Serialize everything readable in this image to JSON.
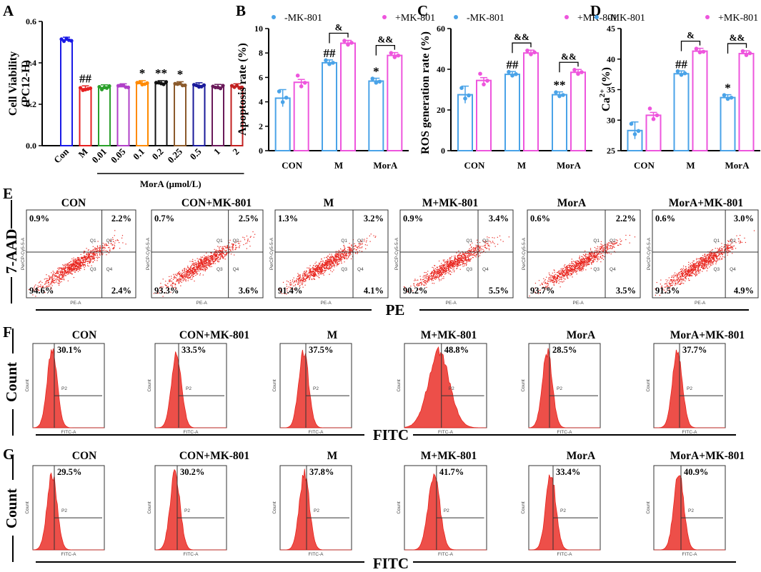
{
  "chart_data": [
    {
      "panel": "A",
      "type": "bar",
      "ylabel": "Cell Viability (PC12-H)",
      "ylim": [
        0,
        0.6
      ],
      "yticks": [
        "0.0",
        "0.2",
        "0.4",
        "0.6"
      ],
      "categories": [
        "Con",
        "M",
        "0.01",
        "0.05",
        "0.1",
        "0.2",
        "0.25",
        "0.5",
        "1",
        "2"
      ],
      "values": [
        0.51,
        0.275,
        0.28,
        0.285,
        0.3,
        0.3,
        0.295,
        0.29,
        0.282,
        0.285
      ],
      "colors": [
        "#1a1ae6",
        "#e62020",
        "#2aa02a",
        "#b040c8",
        "#ff8a00",
        "#111111",
        "#8b5a2b",
        "#1a1a9a",
        "#6a1a5a",
        "#c22020"
      ],
      "annotations": [
        "",
        "##",
        "",
        "",
        "*",
        "**",
        "*",
        "",
        "",
        ""
      ],
      "xlabel": "MorA (μmol/L)"
    },
    {
      "panel": "B",
      "type": "bar",
      "ylabel": "Apoptosis rate (%)",
      "ylim": [
        0,
        10
      ],
      "yticks": [
        "0",
        "2",
        "4",
        "6",
        "8",
        "10"
      ],
      "categories": [
        "CON",
        "M",
        "MorA"
      ],
      "series": [
        {
          "name": "-MK-801",
          "values": [
            4.3,
            7.2,
            5.7
          ],
          "annotations": [
            "",
            "##",
            "*"
          ]
        },
        {
          "name": "+MK-801",
          "values": [
            5.6,
            8.8,
            7.8
          ],
          "annotations": [
            "",
            "",
            ""
          ]
        }
      ],
      "brackets": [
        {
          "category": "M",
          "label": "&"
        },
        {
          "category": "MorA",
          "label": "&&"
        }
      ]
    },
    {
      "panel": "C",
      "type": "bar",
      "ylabel": "ROS generation rate (%)",
      "ylim": [
        0,
        60
      ],
      "yticks": [
        "0",
        "20",
        "40",
        "60"
      ],
      "categories": [
        "CON",
        "M",
        "MorA"
      ],
      "series": [
        {
          "name": "-MK-801",
          "values": [
            27.5,
            37.5,
            27.5
          ],
          "annotations": [
            "",
            "##",
            "**"
          ]
        },
        {
          "name": "+MK-801",
          "values": [
            34.5,
            48.0,
            38.5
          ],
          "annotations": [
            "",
            "",
            ""
          ]
        }
      ],
      "brackets": [
        {
          "category": "M",
          "label": "&&"
        },
        {
          "category": "MorA",
          "label": "&&"
        }
      ]
    },
    {
      "panel": "D",
      "type": "bar",
      "ylabel": "Ca2+ (%)",
      "ylim": [
        25,
        45
      ],
      "yticks": [
        "25",
        "30",
        "35",
        "40",
        "45"
      ],
      "categories": [
        "CON",
        "M",
        "MorA"
      ],
      "series": [
        {
          "name": "-MK-801",
          "values": [
            28.3,
            37.6,
            33.7
          ],
          "annotations": [
            "",
            "##",
            "*"
          ]
        },
        {
          "name": "+MK-801",
          "values": [
            30.8,
            41.3,
            40.9
          ],
          "annotations": [
            "",
            "",
            ""
          ]
        }
      ],
      "brackets": [
        {
          "category": "M",
          "label": "&"
        },
        {
          "category": "MorA",
          "label": "&&"
        }
      ]
    },
    {
      "panel": "E",
      "type": "scatter",
      "description": "flow cytometry quadrant plots",
      "ylabel": "7-AAD",
      "xlabel": "PE",
      "plots": [
        {
          "title": "CON",
          "q1": "0.9%",
          "q2": "2.2%",
          "q3": "94.6%",
          "q4": "2.4%"
        },
        {
          "title": "CON+MK-801",
          "q1": "0.7%",
          "q2": "2.5%",
          "q3": "93.3%",
          "q4": "3.6%"
        },
        {
          "title": "M",
          "q1": "1.3%",
          "q2": "3.2%",
          "q3": "91.4%",
          "q4": "4.1%"
        },
        {
          "title": "M+MK-801",
          "q1": "0.9%",
          "q2": "3.4%",
          "q3": "90.2%",
          "q4": "5.5%"
        },
        {
          "title": "MorA",
          "q1": "0.6%",
          "q2": "2.2%",
          "q3": "93.7%",
          "q4": "3.5%"
        },
        {
          "title": "MorA+MK-801",
          "q1": "0.6%",
          "q2": "3.0%",
          "q3": "91.5%",
          "q4": "4.9%"
        }
      ]
    },
    {
      "panel": "F",
      "type": "area",
      "description": "flow cytometry histograms",
      "ylabel": "Count",
      "xlabel": "FITC",
      "plots": [
        {
          "title": "CON",
          "p2": "30.1%",
          "peak": 0.27
        },
        {
          "title": "CON+MK-801",
          "p2": "33.5%",
          "peak": 0.3
        },
        {
          "title": "M",
          "p2": "37.5%",
          "peak": 0.33
        },
        {
          "title": "M+MK-801",
          "p2": "48.8%",
          "peak": 0.42
        },
        {
          "title": "MorA",
          "p2": "28.5%",
          "peak": 0.26
        },
        {
          "title": "MorA+MK-801",
          "p2": "37.7%",
          "peak": 0.33
        }
      ]
    },
    {
      "panel": "G",
      "type": "area",
      "description": "flow cytometry histograms",
      "ylabel": "Count",
      "xlabel": "FITC",
      "plots": [
        {
          "title": "CON",
          "p2": "29.5%",
          "peak": 0.27
        },
        {
          "title": "CON+MK-801",
          "p2": "30.2%",
          "peak": 0.28
        },
        {
          "title": "M",
          "p2": "37.8%",
          "peak": 0.34
        },
        {
          "title": "M+MK-801",
          "p2": "41.7%",
          "peak": 0.36
        },
        {
          "title": "MorA",
          "p2": "33.4%",
          "peak": 0.31
        },
        {
          "title": "MorA+MK-801",
          "p2": "40.9%",
          "peak": 0.35
        }
      ]
    }
  ],
  "panel_labels": [
    "A",
    "B",
    "C",
    "D",
    "E",
    "F",
    "G"
  ],
  "flow_labels": {
    "quadrants": [
      "Q1",
      "Q2",
      "Q3",
      "Q4"
    ],
    "gate": "P2",
    "scatter_x": "PE-A",
    "scatter_y": "PerCP-Cy5-5-A",
    "hist_x": "FITC-A",
    "hist_y": "Count"
  },
  "colors": {
    "minus": "#4aa3e8",
    "plus": "#ee55dd",
    "flow": "#e8231c"
  }
}
